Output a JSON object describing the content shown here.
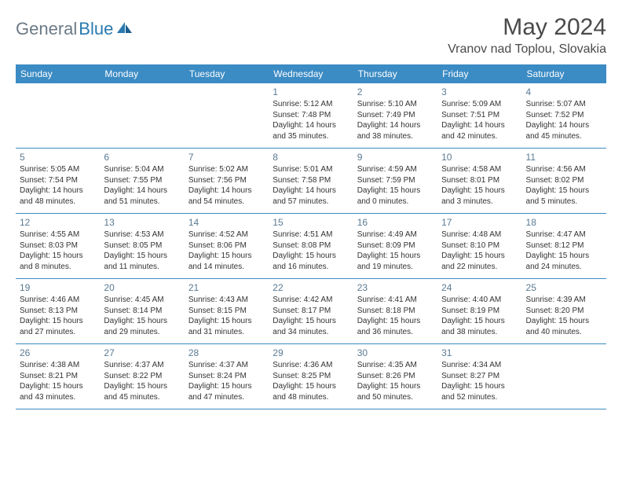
{
  "logo": {
    "text1": "General",
    "text2": "Blue"
  },
  "title": "May 2024",
  "location": "Vranov nad Toplou, Slovakia",
  "colors": {
    "header_bg": "#3b8bc4",
    "header_text": "#ffffff",
    "day_num": "#5a7a92",
    "border": "#3b8bc4",
    "logo_gray": "#6b7a86",
    "logo_blue": "#2a7ab0",
    "title_color": "#4a4a4a"
  },
  "day_names": [
    "Sunday",
    "Monday",
    "Tuesday",
    "Wednesday",
    "Thursday",
    "Friday",
    "Saturday"
  ],
  "weeks": [
    [
      {
        "n": "",
        "sr": "",
        "ss": "",
        "dl": ""
      },
      {
        "n": "",
        "sr": "",
        "ss": "",
        "dl": ""
      },
      {
        "n": "",
        "sr": "",
        "ss": "",
        "dl": ""
      },
      {
        "n": "1",
        "sr": "Sunrise: 5:12 AM",
        "ss": "Sunset: 7:48 PM",
        "dl": "Daylight: 14 hours and 35 minutes."
      },
      {
        "n": "2",
        "sr": "Sunrise: 5:10 AM",
        "ss": "Sunset: 7:49 PM",
        "dl": "Daylight: 14 hours and 38 minutes."
      },
      {
        "n": "3",
        "sr": "Sunrise: 5:09 AM",
        "ss": "Sunset: 7:51 PM",
        "dl": "Daylight: 14 hours and 42 minutes."
      },
      {
        "n": "4",
        "sr": "Sunrise: 5:07 AM",
        "ss": "Sunset: 7:52 PM",
        "dl": "Daylight: 14 hours and 45 minutes."
      }
    ],
    [
      {
        "n": "5",
        "sr": "Sunrise: 5:05 AM",
        "ss": "Sunset: 7:54 PM",
        "dl": "Daylight: 14 hours and 48 minutes."
      },
      {
        "n": "6",
        "sr": "Sunrise: 5:04 AM",
        "ss": "Sunset: 7:55 PM",
        "dl": "Daylight: 14 hours and 51 minutes."
      },
      {
        "n": "7",
        "sr": "Sunrise: 5:02 AM",
        "ss": "Sunset: 7:56 PM",
        "dl": "Daylight: 14 hours and 54 minutes."
      },
      {
        "n": "8",
        "sr": "Sunrise: 5:01 AM",
        "ss": "Sunset: 7:58 PM",
        "dl": "Daylight: 14 hours and 57 minutes."
      },
      {
        "n": "9",
        "sr": "Sunrise: 4:59 AM",
        "ss": "Sunset: 7:59 PM",
        "dl": "Daylight: 15 hours and 0 minutes."
      },
      {
        "n": "10",
        "sr": "Sunrise: 4:58 AM",
        "ss": "Sunset: 8:01 PM",
        "dl": "Daylight: 15 hours and 3 minutes."
      },
      {
        "n": "11",
        "sr": "Sunrise: 4:56 AM",
        "ss": "Sunset: 8:02 PM",
        "dl": "Daylight: 15 hours and 5 minutes."
      }
    ],
    [
      {
        "n": "12",
        "sr": "Sunrise: 4:55 AM",
        "ss": "Sunset: 8:03 PM",
        "dl": "Daylight: 15 hours and 8 minutes."
      },
      {
        "n": "13",
        "sr": "Sunrise: 4:53 AM",
        "ss": "Sunset: 8:05 PM",
        "dl": "Daylight: 15 hours and 11 minutes."
      },
      {
        "n": "14",
        "sr": "Sunrise: 4:52 AM",
        "ss": "Sunset: 8:06 PM",
        "dl": "Daylight: 15 hours and 14 minutes."
      },
      {
        "n": "15",
        "sr": "Sunrise: 4:51 AM",
        "ss": "Sunset: 8:08 PM",
        "dl": "Daylight: 15 hours and 16 minutes."
      },
      {
        "n": "16",
        "sr": "Sunrise: 4:49 AM",
        "ss": "Sunset: 8:09 PM",
        "dl": "Daylight: 15 hours and 19 minutes."
      },
      {
        "n": "17",
        "sr": "Sunrise: 4:48 AM",
        "ss": "Sunset: 8:10 PM",
        "dl": "Daylight: 15 hours and 22 minutes."
      },
      {
        "n": "18",
        "sr": "Sunrise: 4:47 AM",
        "ss": "Sunset: 8:12 PM",
        "dl": "Daylight: 15 hours and 24 minutes."
      }
    ],
    [
      {
        "n": "19",
        "sr": "Sunrise: 4:46 AM",
        "ss": "Sunset: 8:13 PM",
        "dl": "Daylight: 15 hours and 27 minutes."
      },
      {
        "n": "20",
        "sr": "Sunrise: 4:45 AM",
        "ss": "Sunset: 8:14 PM",
        "dl": "Daylight: 15 hours and 29 minutes."
      },
      {
        "n": "21",
        "sr": "Sunrise: 4:43 AM",
        "ss": "Sunset: 8:15 PM",
        "dl": "Daylight: 15 hours and 31 minutes."
      },
      {
        "n": "22",
        "sr": "Sunrise: 4:42 AM",
        "ss": "Sunset: 8:17 PM",
        "dl": "Daylight: 15 hours and 34 minutes."
      },
      {
        "n": "23",
        "sr": "Sunrise: 4:41 AM",
        "ss": "Sunset: 8:18 PM",
        "dl": "Daylight: 15 hours and 36 minutes."
      },
      {
        "n": "24",
        "sr": "Sunrise: 4:40 AM",
        "ss": "Sunset: 8:19 PM",
        "dl": "Daylight: 15 hours and 38 minutes."
      },
      {
        "n": "25",
        "sr": "Sunrise: 4:39 AM",
        "ss": "Sunset: 8:20 PM",
        "dl": "Daylight: 15 hours and 40 minutes."
      }
    ],
    [
      {
        "n": "26",
        "sr": "Sunrise: 4:38 AM",
        "ss": "Sunset: 8:21 PM",
        "dl": "Daylight: 15 hours and 43 minutes."
      },
      {
        "n": "27",
        "sr": "Sunrise: 4:37 AM",
        "ss": "Sunset: 8:22 PM",
        "dl": "Daylight: 15 hours and 45 minutes."
      },
      {
        "n": "28",
        "sr": "Sunrise: 4:37 AM",
        "ss": "Sunset: 8:24 PM",
        "dl": "Daylight: 15 hours and 47 minutes."
      },
      {
        "n": "29",
        "sr": "Sunrise: 4:36 AM",
        "ss": "Sunset: 8:25 PM",
        "dl": "Daylight: 15 hours and 48 minutes."
      },
      {
        "n": "30",
        "sr": "Sunrise: 4:35 AM",
        "ss": "Sunset: 8:26 PM",
        "dl": "Daylight: 15 hours and 50 minutes."
      },
      {
        "n": "31",
        "sr": "Sunrise: 4:34 AM",
        "ss": "Sunset: 8:27 PM",
        "dl": "Daylight: 15 hours and 52 minutes."
      },
      {
        "n": "",
        "sr": "",
        "ss": "",
        "dl": ""
      }
    ]
  ]
}
